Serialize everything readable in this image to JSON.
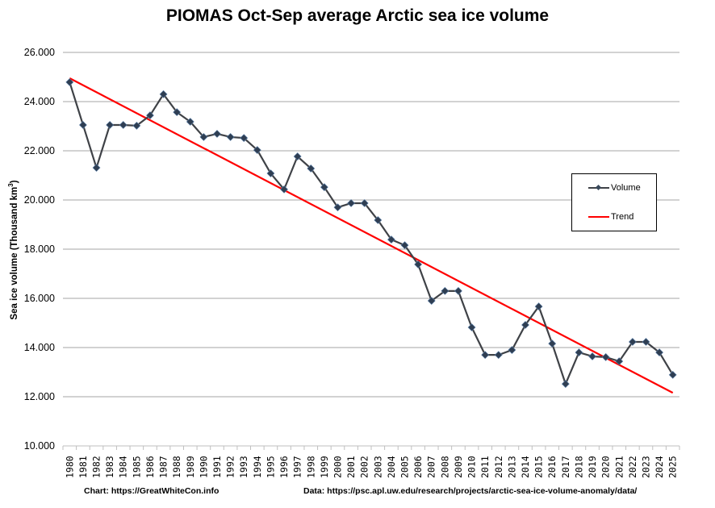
{
  "chart_data": {
    "type": "line",
    "title": "PIOMAS Oct-Sep average Arctic sea ice volume",
    "xlabel": "",
    "ylabel": "Sea ice volume (Thousand km³)",
    "ylabel_parts": {
      "main": "Sea ice volume (Thousand km",
      "sup": "3",
      "end": ")"
    },
    "ylim": [
      10,
      26
    ],
    "yticks": [
      10,
      12,
      14,
      16,
      18,
      20,
      22,
      24,
      26
    ],
    "ytick_labels": [
      "10.000",
      "12.000",
      "14.000",
      "16.000",
      "18.000",
      "20.000",
      "22.000",
      "24.000",
      "26.000"
    ],
    "grid": true,
    "legend_position": "right",
    "x": [
      "1980",
      "1981",
      "1982",
      "1983",
      "1984",
      "1985",
      "1986",
      "1987",
      "1988",
      "1989",
      "1990",
      "1991",
      "1992",
      "1993",
      "1994",
      "1995",
      "1996",
      "1997",
      "1998",
      "1999",
      "2000",
      "2001",
      "2002",
      "2003",
      "2004",
      "2005",
      "2006",
      "2007",
      "2008",
      "2009",
      "2010",
      "2011",
      "2012",
      "2013",
      "2014",
      "2015",
      "2016",
      "2017",
      "2018",
      "2019",
      "2020",
      "2021",
      "2022",
      "2023",
      "2024",
      "2025"
    ],
    "series": [
      {
        "name": "Volume",
        "color": "#3f4247",
        "marker_color": "#2f3e52",
        "values": [
          24.79,
          23.05,
          21.31,
          23.05,
          23.05,
          23.02,
          23.44,
          24.3,
          23.57,
          23.18,
          22.56,
          22.69,
          22.56,
          22.52,
          22.03,
          21.08,
          20.43,
          21.77,
          21.28,
          20.52,
          19.7,
          19.87,
          19.87,
          19.18,
          18.39,
          18.16,
          17.38,
          15.9,
          16.3,
          16.3,
          14.82,
          13.7,
          13.7,
          13.9,
          14.92,
          15.67,
          14.16,
          12.52,
          13.8,
          13.64,
          13.61,
          13.44,
          14.23,
          14.23,
          13.8,
          12.89
        ]
      },
      {
        "name": "Trend",
        "color": "#ff0000",
        "values_endpoints": {
          "1980": 24.95,
          "2025": 12.16
        }
      }
    ]
  },
  "footer": {
    "chart_credit": "Chart: https://GreatWhiteCon.info",
    "data_credit": "Data: https://psc.apl.uw.edu/research/projects/arctic-sea-ice-volume-anomaly/data/"
  }
}
